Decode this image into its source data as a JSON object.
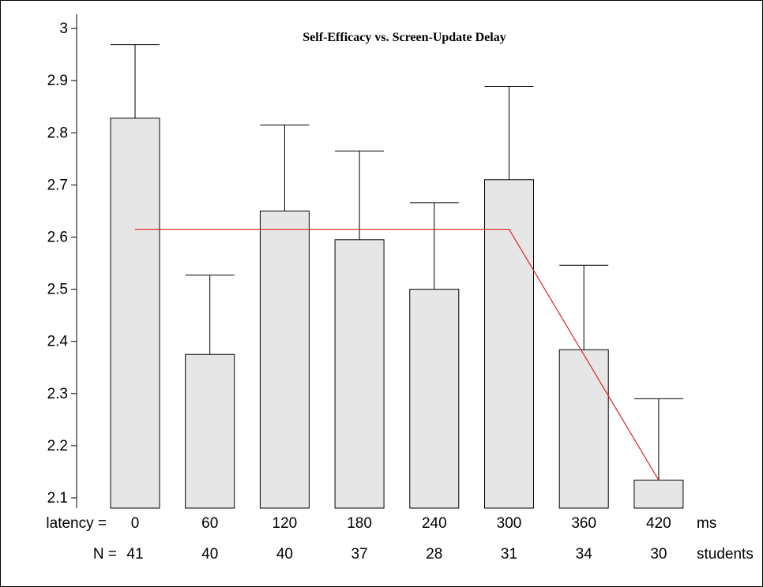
{
  "chart_data": {
    "type": "bar",
    "title": "Self-Efficacy vs. Screen-Update Delay",
    "xlabel": "",
    "ylabel": "",
    "ylim": [
      2.08,
      3.02
    ],
    "yticks": [
      "3",
      "2.9",
      "2.8",
      "2.7",
      "2.6",
      "2.5",
      "2.4",
      "2.3",
      "2.2",
      "2.1"
    ],
    "ytick_values": [
      3.0,
      2.9,
      2.8,
      2.7,
      2.6,
      2.5,
      2.4,
      2.3,
      2.2,
      2.1
    ],
    "categories": [
      "0",
      "60",
      "120",
      "180",
      "240",
      "300",
      "360",
      "420"
    ],
    "values": [
      2.828,
      2.375,
      2.65,
      2.595,
      2.5,
      2.71,
      2.384,
      2.134
    ],
    "error_upper": [
      2.969,
      2.527,
      2.815,
      2.765,
      2.666,
      2.889,
      2.546,
      2.29
    ],
    "n": [
      "41",
      "40",
      "40",
      "37",
      "28",
      "31",
      "34",
      "30"
    ],
    "fit_line": {
      "x": [
        0,
        300,
        420
      ],
      "y": [
        2.615,
        2.615,
        2.134
      ]
    },
    "bar_fill": "#e6e6e6",
    "fit_color": "#e02020",
    "row_labels": {
      "latency_prefix": "latency =",
      "latency_unit": "ms",
      "n_prefix": "N =",
      "n_unit": "students"
    },
    "grid": false,
    "legend": "none"
  }
}
